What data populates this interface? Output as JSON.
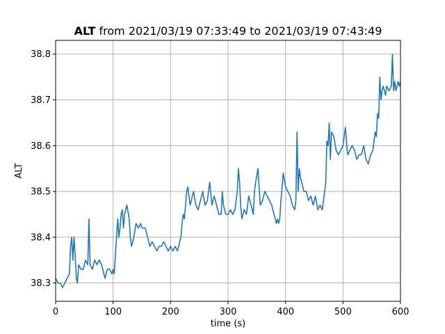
{
  "chart_data": {
    "type": "line",
    "title_prefix": "ALT",
    "title_suffix": " from 2021/03/19 07:33:49 to 2021/03/19 07:43:49",
    "xlabel": "time (s)",
    "ylabel": "ALT",
    "xlim": [
      0,
      600
    ],
    "ylim": [
      38.26,
      38.83
    ],
    "xticks": [
      0,
      100,
      200,
      300,
      400,
      500,
      600
    ],
    "yticks": [
      38.3,
      38.4,
      38.5,
      38.6,
      38.7,
      38.8
    ],
    "ytick_labels": [
      "38.3",
      "38.4",
      "38.5",
      "38.6",
      "38.7",
      "38.8"
    ],
    "grid": true,
    "series": [
      {
        "color": "#1f77b4",
        "x": [
          0,
          4,
          8,
          12,
          16,
          20,
          24,
          26,
          28,
          30,
          32,
          34,
          36,
          38,
          40,
          44,
          48,
          52,
          56,
          58,
          60,
          64,
          68,
          72,
          76,
          80,
          84,
          86,
          90,
          94,
          98,
          100,
          102,
          106,
          108,
          110,
          112,
          114,
          116,
          118,
          120,
          124,
          128,
          130,
          132,
          136,
          140,
          144,
          148,
          150,
          156,
          160,
          164,
          168,
          172,
          176,
          180,
          184,
          188,
          192,
          196,
          200,
          204,
          208,
          212,
          214,
          216,
          218,
          220,
          222,
          224,
          226,
          228,
          230,
          232,
          234,
          236,
          240,
          244,
          248,
          252,
          256,
          260,
          264,
          268,
          272,
          276,
          280,
          284,
          288,
          290,
          292,
          296,
          300,
          304,
          308,
          312,
          316,
          318,
          320,
          322,
          324,
          328,
          332,
          336,
          340,
          344,
          346,
          348,
          352,
          356,
          360,
          364,
          368,
          372,
          376,
          380,
          384,
          386,
          388,
          390,
          392,
          396,
          400,
          404,
          408,
          412,
          416,
          418,
          420,
          422,
          424,
          426,
          428,
          432,
          436,
          440,
          444,
          448,
          452,
          456,
          460,
          464,
          466,
          468,
          470,
          472,
          474,
          476,
          478,
          480,
          484,
          488,
          492,
          496,
          500,
          504,
          508,
          512,
          516,
          520,
          524,
          528,
          532,
          536,
          540,
          544,
          548,
          552,
          556,
          558,
          560,
          562,
          564,
          566,
          568,
          570,
          572,
          574,
          576,
          580,
          584,
          586,
          588,
          590,
          592,
          594,
          596,
          598,
          600
        ],
        "y": [
          38.31,
          38.3,
          38.3,
          38.29,
          38.3,
          38.31,
          38.32,
          38.38,
          38.4,
          38.35,
          38.4,
          38.36,
          38.31,
          38.3,
          38.34,
          38.33,
          38.33,
          38.35,
          38.34,
          38.44,
          38.34,
          38.33,
          38.35,
          38.34,
          38.35,
          38.34,
          38.32,
          38.31,
          38.33,
          38.33,
          38.32,
          38.33,
          38.32,
          38.4,
          38.44,
          38.4,
          38.42,
          38.45,
          38.46,
          38.42,
          38.45,
          38.47,
          38.44,
          38.4,
          38.38,
          38.4,
          38.43,
          38.42,
          38.43,
          38.42,
          38.42,
          38.4,
          38.38,
          38.39,
          38.38,
          38.37,
          38.38,
          38.38,
          38.39,
          38.38,
          38.37,
          38.38,
          38.37,
          38.38,
          38.37,
          38.38,
          38.39,
          38.4,
          38.43,
          38.45,
          38.44,
          38.47,
          38.5,
          38.51,
          38.49,
          38.47,
          38.48,
          38.5,
          38.47,
          38.46,
          38.48,
          38.5,
          38.47,
          38.48,
          38.52,
          38.47,
          38.49,
          38.47,
          38.45,
          38.45,
          38.5,
          38.47,
          38.45,
          38.45,
          38.46,
          38.45,
          38.46,
          38.5,
          38.55,
          38.52,
          38.47,
          38.44,
          38.46,
          38.45,
          38.49,
          38.47,
          38.45,
          38.5,
          38.52,
          38.55,
          38.47,
          38.48,
          38.5,
          38.49,
          38.48,
          38.47,
          38.45,
          38.43,
          38.44,
          38.43,
          38.44,
          38.48,
          38.54,
          38.51,
          38.5,
          38.49,
          38.47,
          38.46,
          38.48,
          38.63,
          38.5,
          38.55,
          38.53,
          38.52,
          38.5,
          38.5,
          38.48,
          38.49,
          38.47,
          38.49,
          38.46,
          38.47,
          38.46,
          38.48,
          38.5,
          38.52,
          38.61,
          38.6,
          38.65,
          38.57,
          38.63,
          38.62,
          38.59,
          38.58,
          38.59,
          38.6,
          38.64,
          38.58,
          38.59,
          38.6,
          38.59,
          38.57,
          38.58,
          38.58,
          38.6,
          38.57,
          38.56,
          38.58,
          38.59,
          38.63,
          38.62,
          38.67,
          38.66,
          38.75,
          38.7,
          38.72,
          38.73,
          38.72,
          38.71,
          38.73,
          38.72,
          38.73,
          38.8,
          38.72,
          38.74,
          38.72,
          38.73,
          38.74,
          38.73,
          38.74
        ]
      }
    ]
  }
}
